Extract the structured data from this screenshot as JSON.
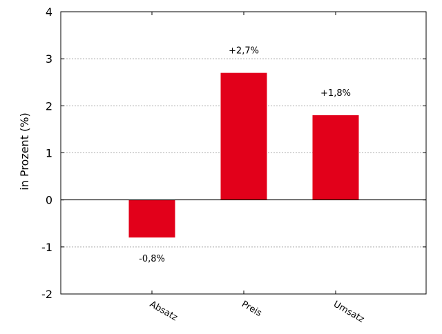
{
  "chart_data": {
    "type": "bar",
    "title": "",
    "xlabel": "",
    "ylabel": "in Prozent (%)",
    "categories": [
      "Absatz",
      "Preis",
      "Umsatz"
    ],
    "values": [
      -0.8,
      2.7,
      1.8
    ],
    "value_labels": [
      "-0,8%",
      "+2,7%",
      "+1,8%"
    ],
    "ylim": [
      -2,
      4
    ],
    "yticks": [
      -2,
      -1,
      0,
      1,
      2,
      3,
      4
    ],
    "ytick_labels": [
      "-2",
      "-1",
      "0",
      "1",
      "2",
      "3",
      "4"
    ],
    "grid": "horizontal dotted",
    "legend": "none",
    "bar_color": "#e2001a",
    "grid_color": "#aaaaaa",
    "zero_line_color": "#000000"
  }
}
